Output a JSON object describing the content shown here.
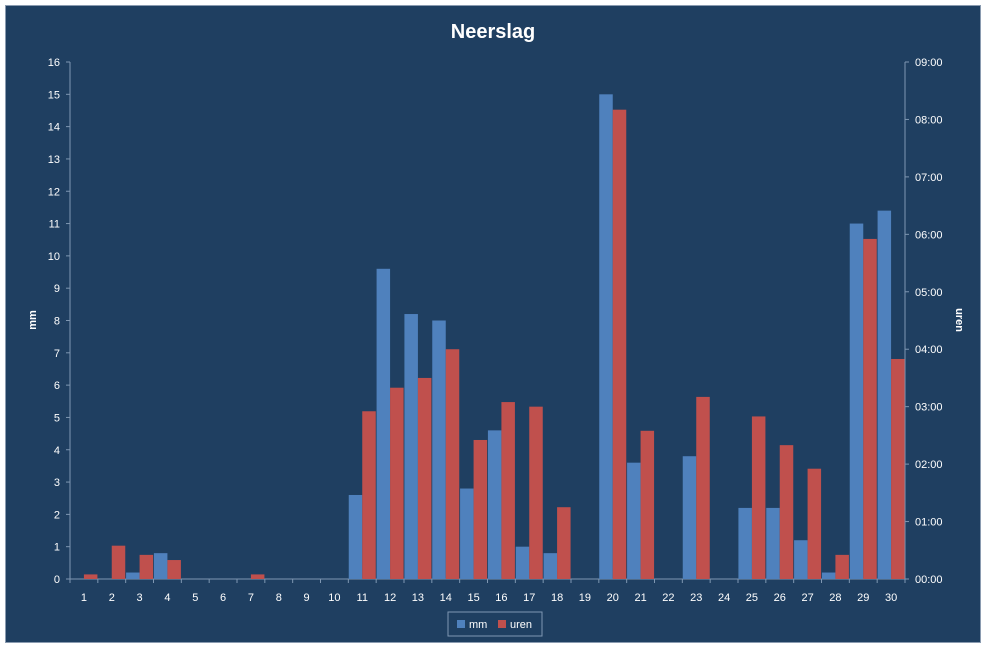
{
  "chart_data": {
    "type": "bar",
    "title": "Neerslag",
    "ylabel": "mm",
    "y2label": "uren",
    "ylim": [
      0,
      16
    ],
    "y2lim": [
      "00:00",
      "09:00"
    ],
    "y_ticks": [
      "0",
      "1",
      "2",
      "3",
      "4",
      "5",
      "6",
      "7",
      "8",
      "9",
      "10",
      "11",
      "12",
      "13",
      "14",
      "15",
      "16"
    ],
    "y2_ticks": [
      "00:00",
      "01:00",
      "02:00",
      "03:00",
      "04:00",
      "05:00",
      "06:00",
      "07:00",
      "08:00",
      "09:00"
    ],
    "grid": false,
    "legend": "bottom",
    "categories": [
      "1",
      "2",
      "3",
      "4",
      "5",
      "6",
      "7",
      "8",
      "9",
      "10",
      "11",
      "12",
      "13",
      "14",
      "15",
      "16",
      "17",
      "18",
      "19",
      "20",
      "21",
      "22",
      "23",
      "24",
      "25",
      "26",
      "27",
      "28",
      "29",
      "30"
    ],
    "series": [
      {
        "name": "mm",
        "axis": "left",
        "color": "#4f81bd",
        "values": [
          0,
          0,
          0.2,
          0.8,
          0,
          0,
          0,
          0,
          0,
          0,
          2.6,
          9.6,
          8.2,
          8.0,
          2.8,
          4.6,
          1.0,
          0.8,
          0,
          15.0,
          3.6,
          0,
          3.8,
          0,
          2.2,
          2.2,
          1.2,
          0.2,
          11.0,
          11.4
        ]
      },
      {
        "name": "uren",
        "axis": "right",
        "color": "#c0504d",
        "values_hours": [
          0.08,
          0.58,
          0.42,
          0.33,
          0,
          0,
          0.08,
          0,
          0,
          0,
          2.92,
          3.33,
          3.5,
          4.0,
          2.42,
          3.08,
          3.0,
          1.25,
          0,
          8.17,
          2.58,
          0,
          3.17,
          0,
          2.83,
          2.33,
          1.92,
          0.42,
          5.92,
          3.83
        ]
      }
    ]
  },
  "colors": {
    "background": "#1f3f61",
    "axis": "#7f97b2",
    "text": "#ffffff"
  }
}
